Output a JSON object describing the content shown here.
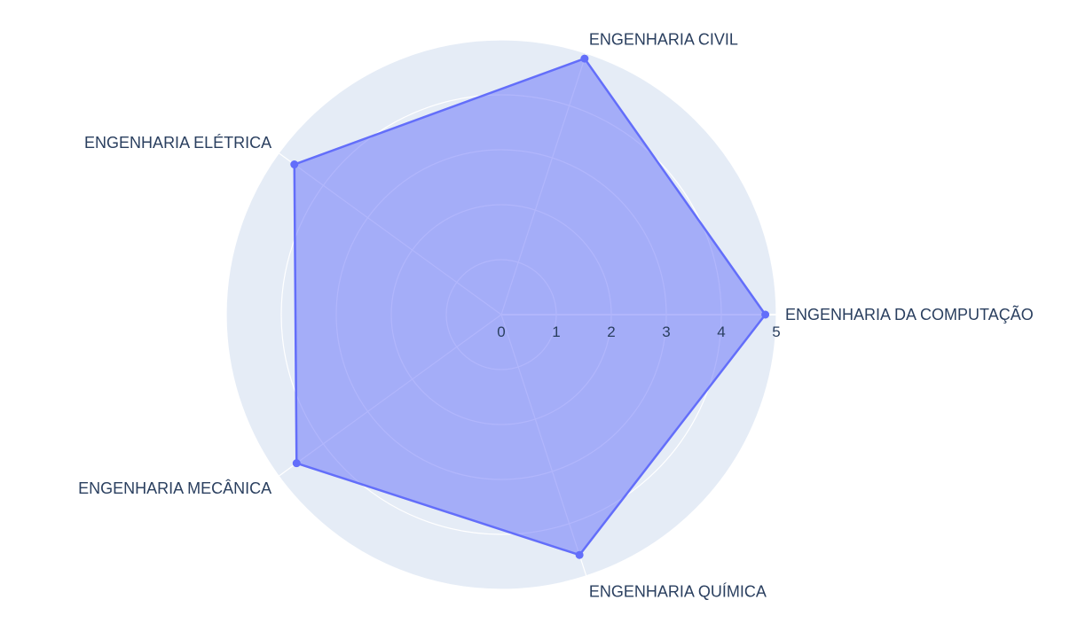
{
  "colors": {
    "polar_background": "#e5ecf6",
    "grid": "#ffffff",
    "series_line": "#636efa",
    "series_fill": "rgba(99,110,250,0.5)",
    "text": "#2a3f5f"
  },
  "chart_data": {
    "type": "radar",
    "title": "",
    "categories": [
      "ENGENHARIA DA COMPUTAÇÃO",
      "ENGENHARIA CIVIL",
      "ENGENHARIA ELÉTRICA",
      "ENGENHARIA MECÂNICA",
      "ENGENHARIA QUÍMICA"
    ],
    "series": [
      {
        "values": [
          4.8,
          4.9,
          4.65,
          4.6,
          4.6
        ],
        "fill": "toself",
        "markers": true
      }
    ],
    "radial_axis": {
      "range": [
        0,
        5
      ],
      "tick_labels": [
        "0",
        "1",
        "2",
        "3",
        "4",
        "5"
      ]
    },
    "grid": true,
    "legend": false
  }
}
